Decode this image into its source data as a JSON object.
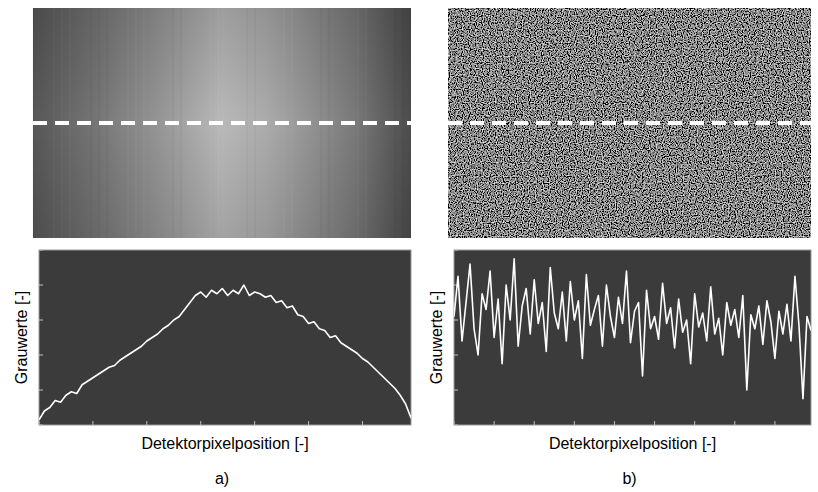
{
  "chart_data": [
    {
      "type": "line",
      "title": "a)",
      "x_label": "Detektorpixelposition [-]",
      "y_label": "Grauwerte [-]",
      "x": [
        0,
        1,
        2,
        3,
        4,
        5,
        6,
        7,
        8,
        9,
        10,
        11,
        12,
        13,
        14,
        15,
        16,
        17,
        18,
        19,
        20,
        21,
        22,
        23,
        24,
        25,
        26,
        27,
        28,
        29,
        30,
        31,
        32,
        33,
        34,
        35,
        36,
        37,
        38,
        39,
        40,
        41,
        42,
        43,
        44,
        45,
        46,
        47,
        48,
        49,
        50,
        51,
        52,
        53,
        54,
        55,
        56,
        57,
        58,
        59,
        60,
        61,
        62,
        63,
        64,
        65,
        66,
        67,
        68,
        69
      ],
      "values": [
        3,
        8,
        10,
        14,
        13,
        17,
        19,
        18,
        23,
        25,
        27,
        29,
        31,
        33,
        34,
        37,
        39,
        41,
        43,
        45,
        48,
        50,
        52,
        55,
        57,
        60,
        62,
        66,
        70,
        74,
        76,
        73,
        77,
        75,
        78,
        74,
        77,
        75,
        80,
        74,
        76,
        75,
        73,
        74,
        70,
        71,
        67,
        68,
        63,
        62,
        58,
        59,
        55,
        54,
        50,
        51,
        47,
        45,
        43,
        41,
        38,
        36,
        33,
        30,
        27,
        24,
        21,
        17,
        12,
        4
      ],
      "color": "#ffffff",
      "xlim": [
        0,
        69
      ],
      "ylim": [
        0,
        100
      ],
      "xticks": [
        0,
        10,
        20,
        30,
        40,
        50,
        60
      ],
      "yticks": [
        0,
        20,
        40,
        60,
        80,
        100
      ],
      "grid": false,
      "tick_labels": false
    },
    {
      "type": "line",
      "title": "b)",
      "x_label": "Detektorpixelposition [-]",
      "y_label": "Grauwerte [-]",
      "x": [
        0,
        1,
        2,
        3,
        4,
        5,
        6,
        7,
        8,
        9,
        10,
        11,
        12,
        13,
        14,
        15,
        16,
        17,
        18,
        19,
        20,
        21,
        22,
        23,
        24,
        25,
        26,
        27,
        28,
        29,
        30,
        31,
        32,
        33,
        34,
        35,
        36,
        37,
        38,
        39,
        40,
        41,
        42,
        43,
        44,
        45,
        46,
        47,
        48,
        49,
        50,
        51,
        52,
        53,
        54,
        55,
        56,
        57,
        58,
        59,
        60,
        61,
        62,
        63,
        64,
        65,
        66,
        67,
        68,
        69,
        70,
        71,
        72,
        73,
        74,
        75,
        76,
        77,
        78,
        79,
        80,
        81,
        82,
        83,
        84,
        85,
        86,
        87,
        88,
        89
      ],
      "values": [
        62,
        85,
        48,
        70,
        92,
        55,
        40,
        75,
        66,
        88,
        50,
        72,
        35,
        80,
        60,
        95,
        45,
        68,
        78,
        52,
        83,
        58,
        70,
        42,
        90,
        64,
        55,
        76,
        48,
        82,
        60,
        71,
        38,
        86,
        57,
        66,
        74,
        45,
        80,
        62,
        50,
        73,
        58,
        88,
        47,
        65,
        70,
        28,
        77,
        55,
        62,
        49,
        81,
        58,
        67,
        44,
        72,
        53,
        60,
        35,
        75,
        56,
        64,
        48,
        79,
        52,
        61,
        40,
        70,
        57,
        66,
        50,
        74,
        20,
        63,
        55,
        68,
        46,
        71,
        59,
        38,
        65,
        52,
        69,
        48,
        85,
        57,
        15,
        62,
        54
      ],
      "color": "#ffffff",
      "xlim": [
        0,
        89
      ],
      "ylim": [
        0,
        100
      ],
      "xticks": [
        0,
        10,
        20,
        30,
        40,
        50,
        60,
        70,
        80
      ],
      "yticks": [
        0,
        20,
        40,
        60,
        80,
        100
      ],
      "grid": false,
      "tick_labels": false
    }
  ]
}
